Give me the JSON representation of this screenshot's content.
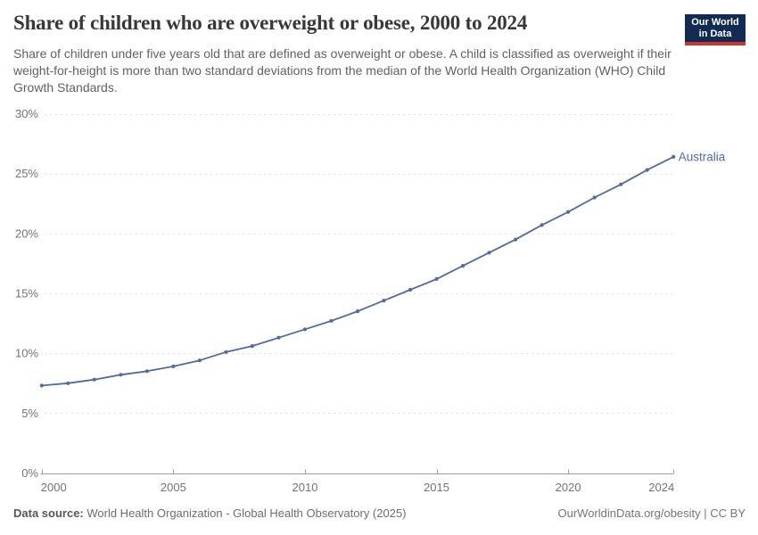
{
  "header": {
    "title": "Share of children who are overweight or obese, 2000 to 2024",
    "subtitle": "Share of children under five years old that are defined as overweight or obese. A child is classified as overweight if their weight-for-height is more than two standard deviations from the median of the World Health Organization (WHO) Child Growth Standards.",
    "logo": {
      "line1": "Our World",
      "line2": "in Data",
      "bg_color": "#122b52",
      "stripe_color": "#d0332b"
    }
  },
  "chart_data": {
    "type": "line",
    "title": "Share of children who are overweight or obese, 2000 to 2024",
    "series": [
      {
        "name": "Australia",
        "x": [
          2000,
          2001,
          2002,
          2003,
          2004,
          2005,
          2006,
          2007,
          2008,
          2009,
          2010,
          2011,
          2012,
          2013,
          2014,
          2015,
          2016,
          2017,
          2018,
          2019,
          2020,
          2021,
          2022,
          2023,
          2024
        ],
        "values": [
          7.3,
          7.5,
          7.8,
          8.2,
          8.5,
          8.9,
          9.4,
          10.1,
          10.6,
          11.3,
          12.0,
          12.7,
          13.5,
          14.4,
          15.3,
          16.2,
          17.3,
          18.4,
          19.5,
          20.7,
          21.8,
          23.0,
          24.1,
          25.3,
          26.4
        ]
      }
    ],
    "xlabel": "",
    "ylabel": "",
    "xlim": [
      2000,
      2024
    ],
    "ylim": [
      0,
      30
    ],
    "x_ticks": [
      2000,
      2005,
      2010,
      2015,
      2020,
      2024
    ],
    "y_ticks": [
      0,
      5,
      10,
      15,
      20,
      25,
      30
    ],
    "y_tick_suffix": "%",
    "grid": "horizontal dashed",
    "legend": "line-end label"
  },
  "colors": {
    "line": "#4e6ba5",
    "grid": "#e3e3e3",
    "axis": "#9e9e9e",
    "tick_label": "#737373"
  },
  "footer": {
    "source_label": "Data source:",
    "source_text": " World Health Organization - Global Health Observatory (2025)",
    "link_text": "OurWorldinData.org/obesity | CC BY"
  }
}
